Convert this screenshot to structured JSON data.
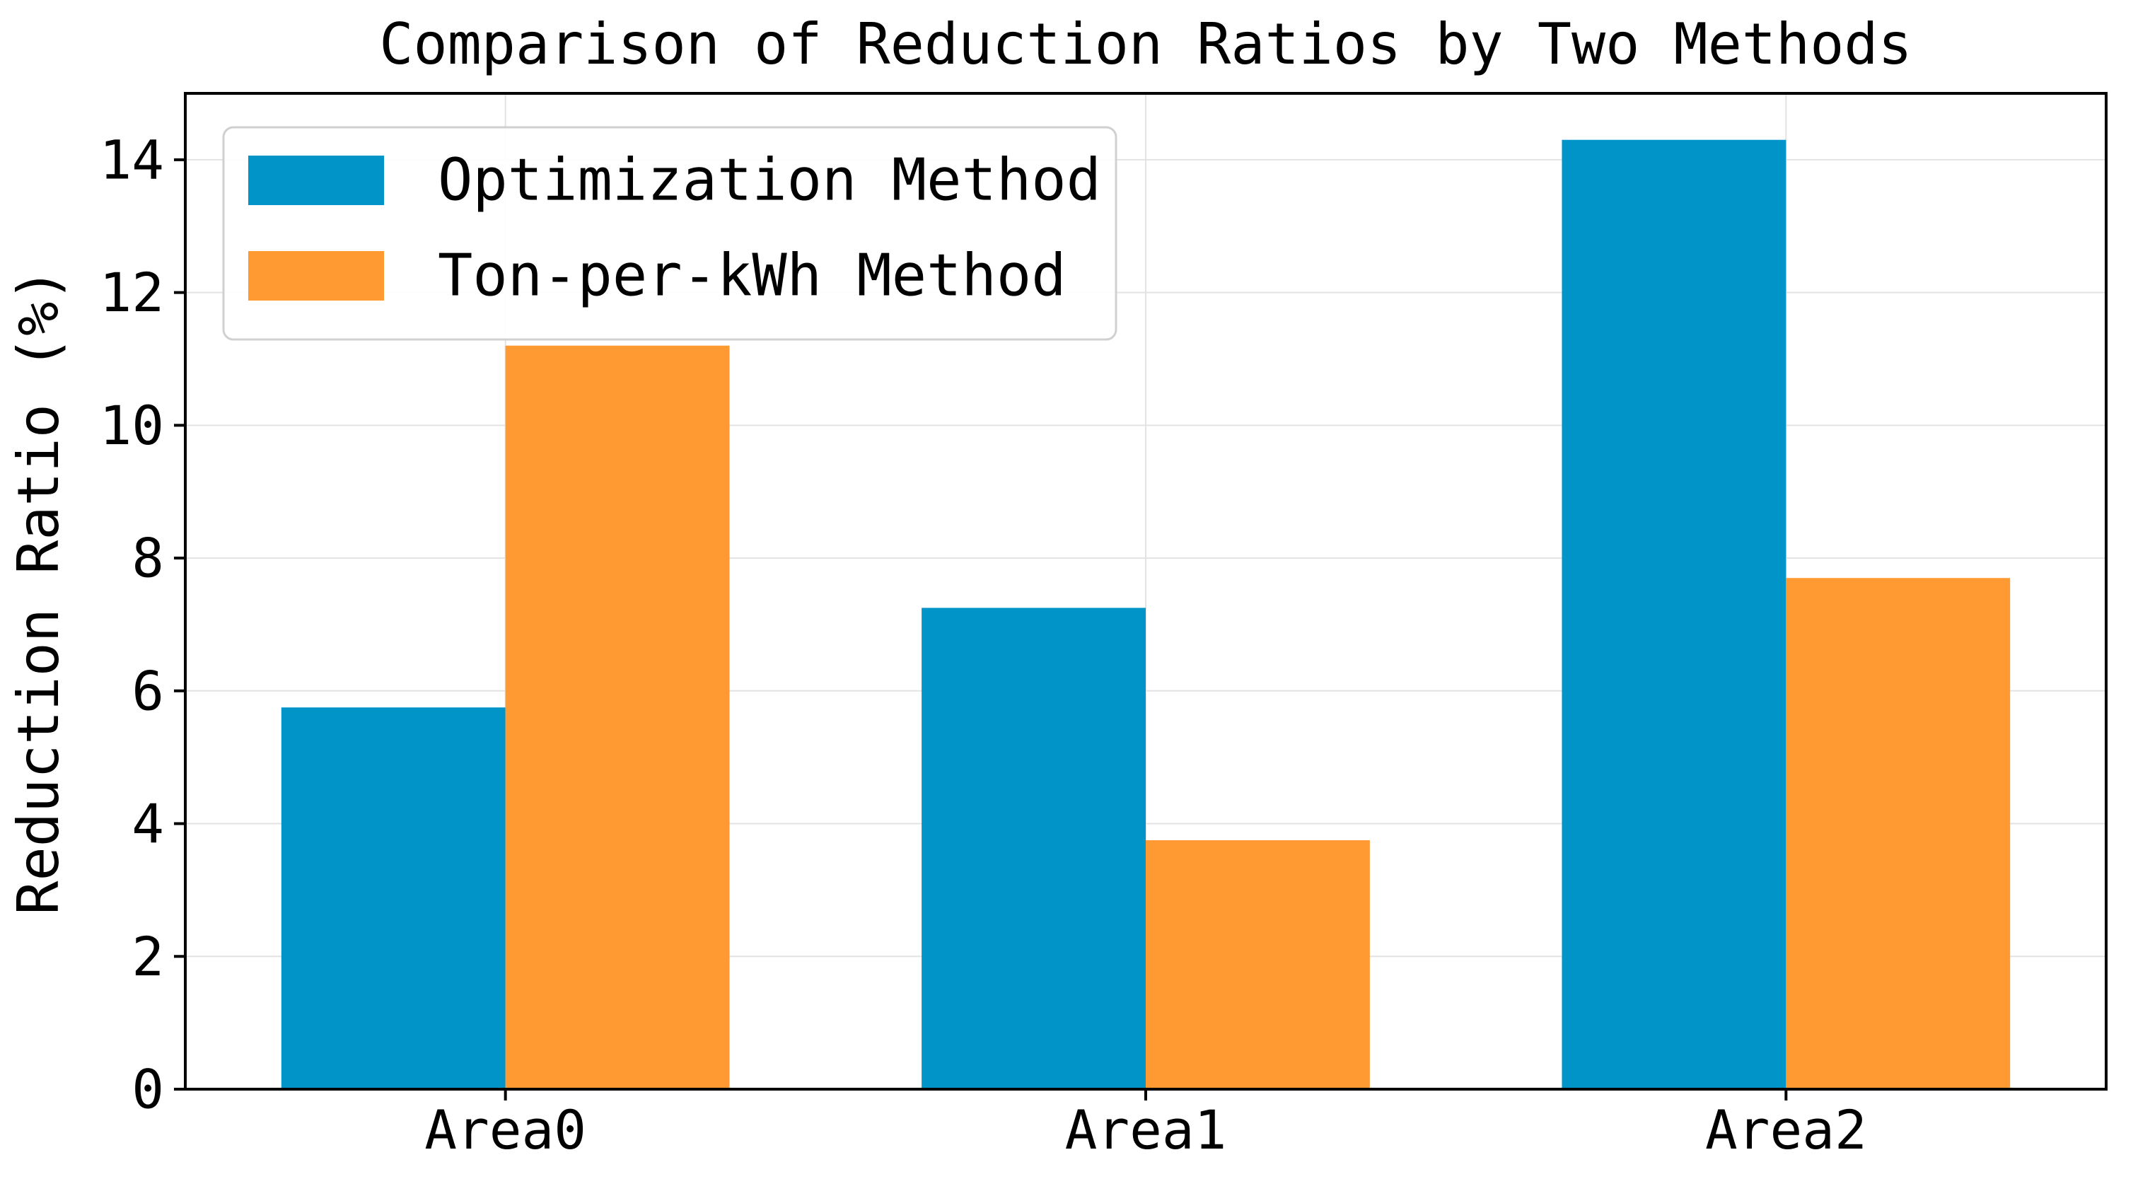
{
  "chart_data": {
    "type": "bar",
    "title": "Comparison of Reduction Ratios by Two Methods",
    "xlabel": "",
    "ylabel": "Reduction Ratio (%)",
    "categories": [
      "Area0",
      "Area1",
      "Area2"
    ],
    "series": [
      {
        "name": "Optimization Method",
        "values": [
          5.75,
          7.25,
          14.3
        ],
        "color": "#0094C8"
      },
      {
        "name": "Ton-per-kWh Method",
        "values": [
          11.2,
          3.75,
          7.7
        ],
        "color": "#FF9A33"
      }
    ],
    "ylim": [
      0,
      15
    ],
    "yticks": [
      0,
      2,
      4,
      6,
      8,
      10,
      12,
      14
    ],
    "grid": true,
    "legend": "top-left"
  }
}
